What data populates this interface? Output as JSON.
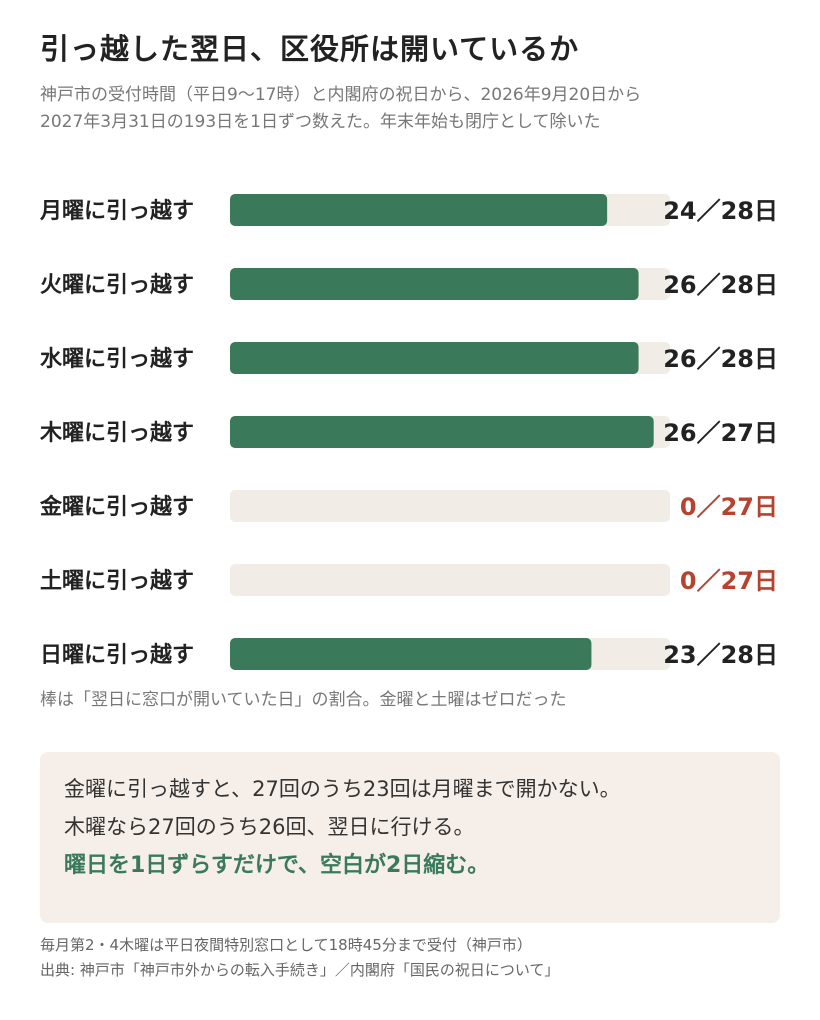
{
  "title": "引っ越した翌日、区役所は開いているか",
  "subtitle_lines": [
    "神戸市の受付時間（平日9〜17時）と内閣府の祝日から、2026年9月20日から",
    "2027年3月31日の193日を1日ずつ数えた。年末年始も閉庁として除いた"
  ],
  "chart_data": {
    "type": "bar",
    "orientation": "horizontal",
    "categories": [
      "月曜に引っ越す",
      "火曜に引っ越す",
      "水曜に引っ越す",
      "木曜に引っ越す",
      "金曜に引っ越す",
      "土曜に引っ越す",
      "日曜に引っ越す"
    ],
    "series": [
      {
        "open_days": [
          24,
          26,
          26,
          26,
          0,
          0,
          23
        ],
        "total_days": [
          28,
          28,
          28,
          27,
          27,
          27,
          28
        ]
      }
    ],
    "value_labels": [
      "24／28日",
      "26／28日",
      "26／28日",
      "26／27日",
      "0／27日",
      "0／27日",
      "23／28日"
    ],
    "xlim": [
      0,
      1
    ],
    "grid": false,
    "colors": {
      "bar": "#3a7a5a",
      "track": "#f1ede6",
      "value_normal": "#222222",
      "value_zero": "#b5432f"
    }
  },
  "bar_note": "棒は「翌日に窓口が開いていた日」の割合。金曜と土曜はゼロだった",
  "callout": {
    "line1": "金曜に引っ越すと、27回のうち23回は月曜まで開かない。",
    "line2": "木曜なら27回のうち26回、翌日に行ける。",
    "highlight": "曜日を1日ずらすだけで、空白が2日縮む。"
  },
  "footnotes": [
    "毎月第2・4木曜は平日夜間特別窓口として18時45分まで受付（神戸市）",
    "出典: 神戸市「神戸市外からの転入手続き」／内閣府「国民の祝日について」"
  ]
}
